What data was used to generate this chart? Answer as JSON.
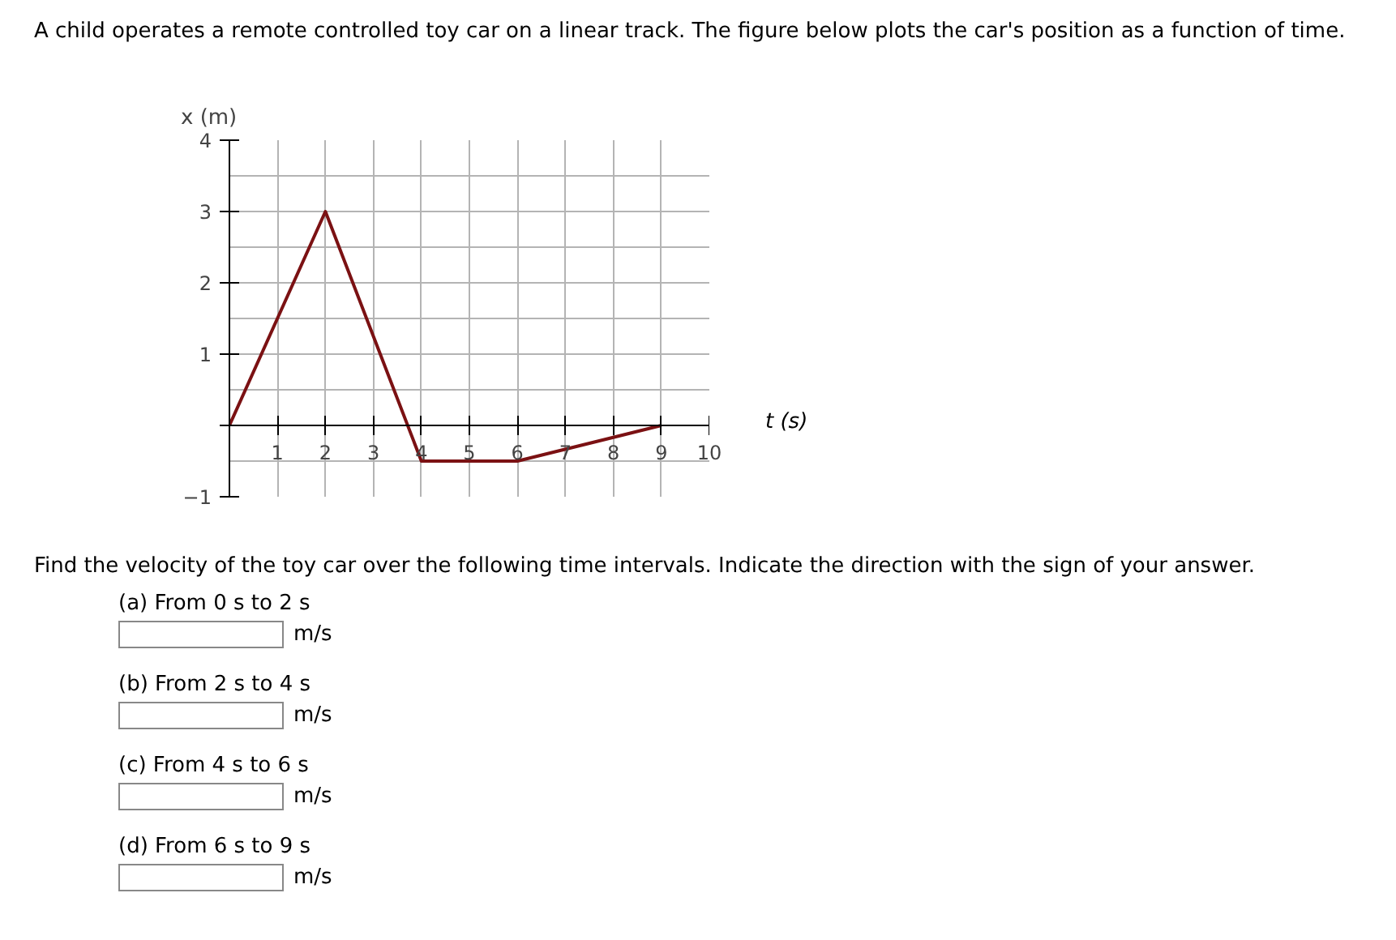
{
  "chart_data": {
    "type": "line",
    "title": "A child operates a remote controlled toy car on a linear track. The figure below plots the car's position as a function of time.",
    "xlabel": "t (s)",
    "ylabel": "x (m)",
    "x": [
      0,
      2,
      4,
      6,
      9
    ],
    "series": [
      {
        "color": "#7b1113",
        "values": [
          0,
          3,
          -0.5,
          -0.5,
          0
        ]
      }
    ],
    "xlim": [
      0,
      10
    ],
    "ylim": [
      -1,
      4
    ],
    "xticks": [
      1,
      2,
      3,
      4,
      5,
      6,
      7,
      8,
      9,
      10
    ],
    "yticks": [
      {
        "value": -1,
        "label": "−1"
      },
      {
        "value": 0,
        "label": null
      },
      1,
      2,
      3,
      4
    ],
    "grid": true,
    "marker": "none",
    "line_style": "solid",
    "annotations": [
      "Find the velocity of the toy car over the following time intervals. Indicate the direction with the sign of your answer.",
      "(a) From 0 s to 2 s",
      "m/s",
      "(b) From 2 s to 4 s",
      "m/s",
      "(c) From 4 s to 6 s",
      "m/s",
      "(d) From 6 s to 9 s",
      "m/s"
    ]
  }
}
